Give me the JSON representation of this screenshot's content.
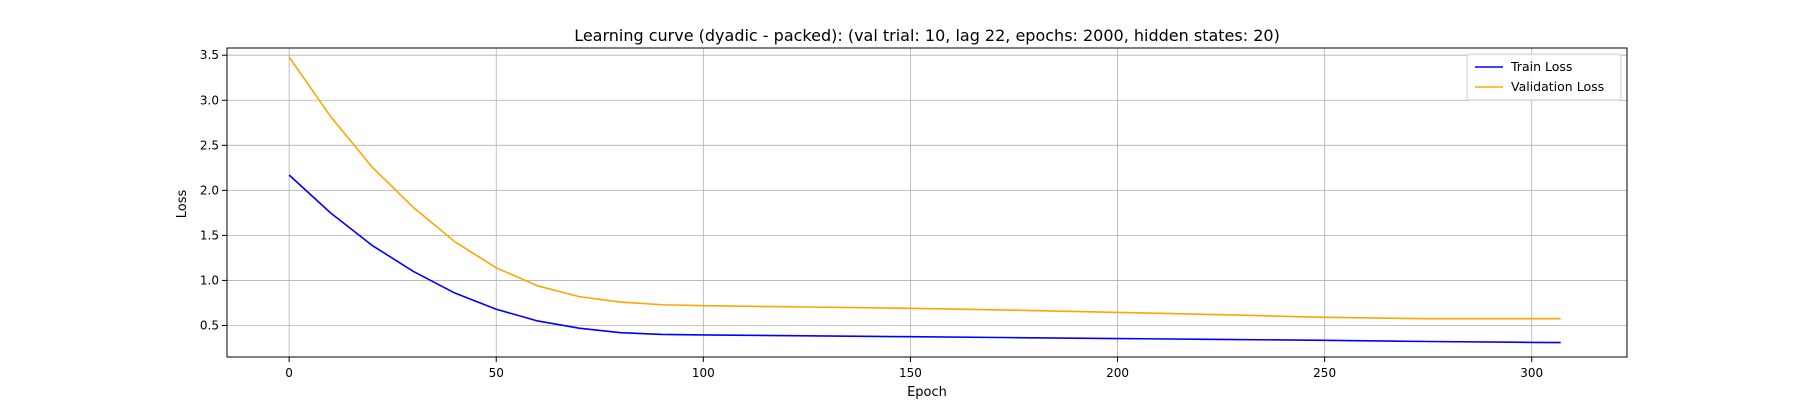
{
  "chart_data": {
    "type": "line",
    "title": "Learning curve (dyadic - packed): (val trial: 10, lag 22, epochs: 2000, hidden states: 20)",
    "xlabel": "Epoch",
    "ylabel": "Loss",
    "xlim": [
      -15,
      323
    ],
    "ylim": [
      0.15,
      3.58
    ],
    "x_ticks": [
      0,
      50,
      100,
      150,
      200,
      250,
      300
    ],
    "x_tick_labels": [
      "0",
      "50",
      "100",
      "150",
      "200",
      "250",
      "300"
    ],
    "y_ticks": [
      0.5,
      1.0,
      1.5,
      2.0,
      2.5,
      3.0,
      3.5
    ],
    "y_tick_labels": [
      "0.5",
      "1.0",
      "1.5",
      "2.0",
      "2.5",
      "3.0",
      "3.5"
    ],
    "grid": true,
    "legend_position": "top-right",
    "series": [
      {
        "name": "Train Loss",
        "color": "#0000ff",
        "x": [
          0,
          10,
          20,
          30,
          40,
          50,
          60,
          70,
          80,
          90,
          100,
          125,
          150,
          175,
          200,
          225,
          250,
          275,
          300,
          307
        ],
        "y": [
          2.17,
          1.75,
          1.39,
          1.1,
          0.86,
          0.68,
          0.55,
          0.47,
          0.42,
          0.4,
          0.395,
          0.385,
          0.375,
          0.365,
          0.355,
          0.345,
          0.335,
          0.322,
          0.312,
          0.31
        ]
      },
      {
        "name": "Validation Loss",
        "color": "#ffa500",
        "x": [
          0,
          10,
          20,
          30,
          40,
          50,
          60,
          70,
          80,
          90,
          100,
          125,
          150,
          175,
          200,
          225,
          250,
          275,
          300,
          307
        ],
        "y": [
          3.48,
          2.82,
          2.26,
          1.81,
          1.43,
          1.14,
          0.94,
          0.82,
          0.76,
          0.73,
          0.72,
          0.705,
          0.69,
          0.67,
          0.645,
          0.62,
          0.59,
          0.575,
          0.575,
          0.575
        ]
      }
    ]
  }
}
